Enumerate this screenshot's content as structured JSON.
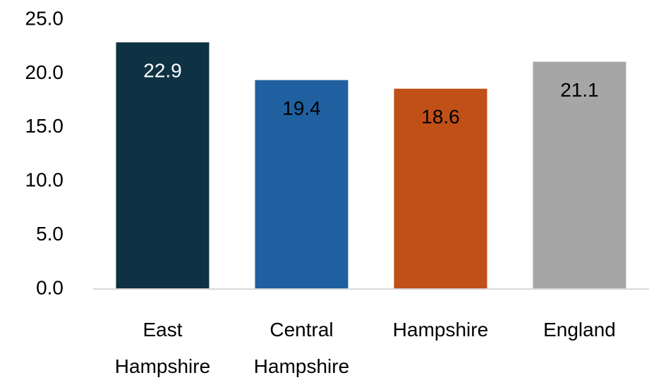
{
  "chart_data": {
    "type": "bar",
    "categories": [
      "East Hampshire",
      "Central Hampshire",
      "Hampshire",
      "England"
    ],
    "values": [
      22.9,
      19.4,
      18.6,
      21.1
    ],
    "colors": [
      "#0e3243",
      "#2060a0",
      "#c05018",
      "#a6a6a6"
    ],
    "label_colors": [
      "#ffffff",
      "#000000",
      "#000000",
      "#000000"
    ],
    "ylim": [
      0,
      25
    ],
    "yticks": [
      {
        "value": 0,
        "label": "0.0"
      },
      {
        "value": 5,
        "label": "5.0"
      },
      {
        "value": 10,
        "label": "10.0"
      },
      {
        "value": 15,
        "label": "15.0"
      },
      {
        "value": 20,
        "label": "20.0"
      },
      {
        "value": 25,
        "label": "25.0"
      }
    ],
    "grid": false
  }
}
